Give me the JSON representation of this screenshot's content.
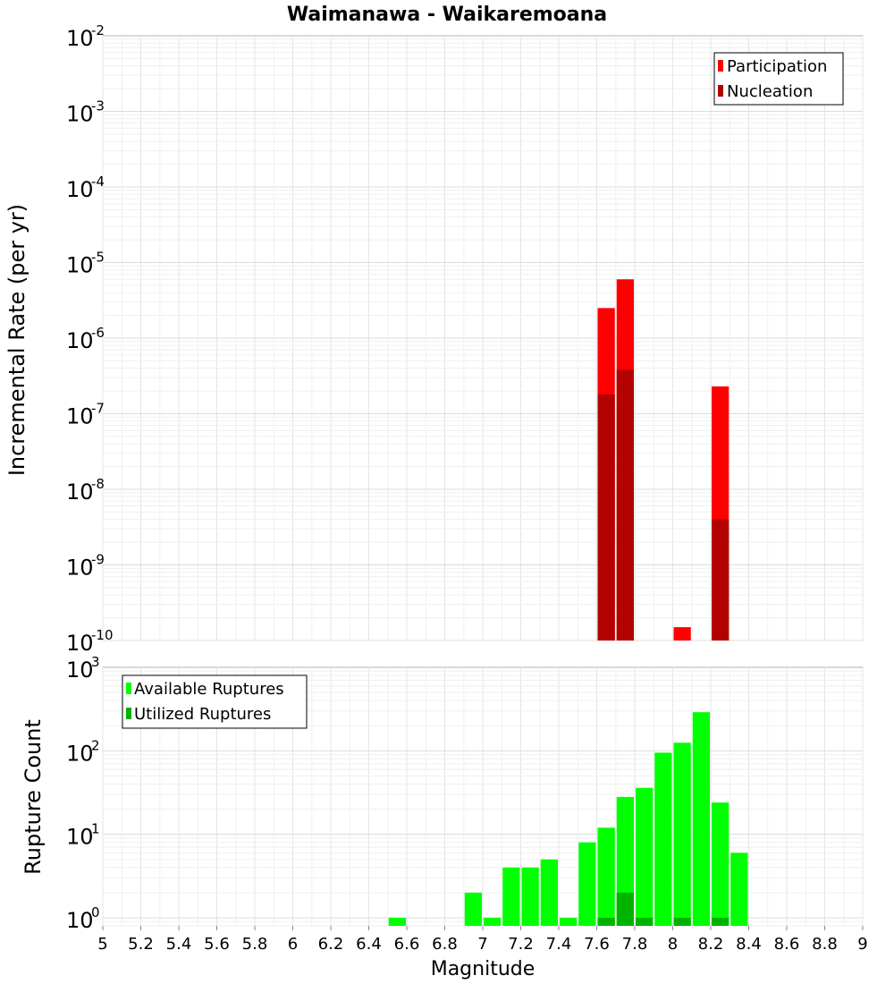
{
  "chart_data": [
    {
      "type": "bar",
      "title": "Waimanawa - Waikaremoana",
      "xlabel": "",
      "ylabel": "Incremental Rate (per yr)",
      "yscale": "log",
      "xlim": [
        5,
        9
      ],
      "ylim": [
        1e-10,
        0.01
      ],
      "bin_width": 0.1,
      "grid": true,
      "legend": "top-right",
      "y_ticks": [
        {
          "base": "10",
          "exp": "-2",
          "value": 0.01
        },
        {
          "base": "10",
          "exp": "-3",
          "value": 0.001
        },
        {
          "base": "10",
          "exp": "-4",
          "value": 0.0001
        },
        {
          "base": "10",
          "exp": "-5",
          "value": 1e-05
        },
        {
          "base": "10",
          "exp": "-6",
          "value": 1e-06
        },
        {
          "base": "10",
          "exp": "-7",
          "value": 1e-07
        },
        {
          "base": "10",
          "exp": "-8",
          "value": 1e-08
        },
        {
          "base": "10",
          "exp": "-9",
          "value": 1e-09
        },
        {
          "base": "10",
          "exp": "-10",
          "value": 1e-10
        }
      ],
      "series": [
        {
          "name": "Participation",
          "color": "#ff0000",
          "x": [
            7.65,
            7.75,
            8.05,
            8.25
          ],
          "values": [
            2.5e-06,
            6e-06,
            1.5e-10,
            2.3e-07
          ]
        },
        {
          "name": "Nucleation",
          "color": "#b30000",
          "x": [
            7.65,
            7.75,
            8.25
          ],
          "values": [
            1.8e-07,
            3.8e-07,
            4e-09
          ]
        }
      ]
    },
    {
      "type": "bar",
      "title": "",
      "xlabel": "Magnitude",
      "ylabel": "Rupture Count",
      "yscale": "log",
      "xlim": [
        5,
        9
      ],
      "ylim": [
        0.8,
        1000
      ],
      "bin_width": 0.1,
      "grid": true,
      "legend": "top-left",
      "x_ticks": [
        "5",
        "5.2",
        "5.4",
        "5.6",
        "5.8",
        "6",
        "6.2",
        "6.4",
        "6.6",
        "6.8",
        "7",
        "7.2",
        "7.4",
        "7.6",
        "7.8",
        "8",
        "8.2",
        "8.4",
        "8.6",
        "8.8",
        "9"
      ],
      "y_ticks": [
        {
          "base": "10",
          "exp": "3",
          "value": 1000
        },
        {
          "base": "10",
          "exp": "2",
          "value": 100
        },
        {
          "base": "10",
          "exp": "1",
          "value": 10
        },
        {
          "base": "10",
          "exp": "0",
          "value": 1
        }
      ],
      "series": [
        {
          "name": "Available Ruptures",
          "color": "#00ff00",
          "x": [
            6.55,
            6.95,
            7.05,
            7.15,
            7.25,
            7.35,
            7.45,
            7.55,
            7.65,
            7.75,
            7.85,
            7.95,
            8.05,
            8.15,
            8.25,
            8.35
          ],
          "values": [
            1,
            2,
            1,
            4,
            4,
            5,
            1,
            8,
            12,
            28,
            36,
            95,
            125,
            290,
            24,
            6
          ]
        },
        {
          "name": "Utilized Ruptures",
          "color": "#00b300",
          "x": [
            7.65,
            7.75,
            7.85,
            8.05,
            8.25
          ],
          "values": [
            1,
            2,
            1,
            1,
            1
          ]
        }
      ]
    }
  ]
}
